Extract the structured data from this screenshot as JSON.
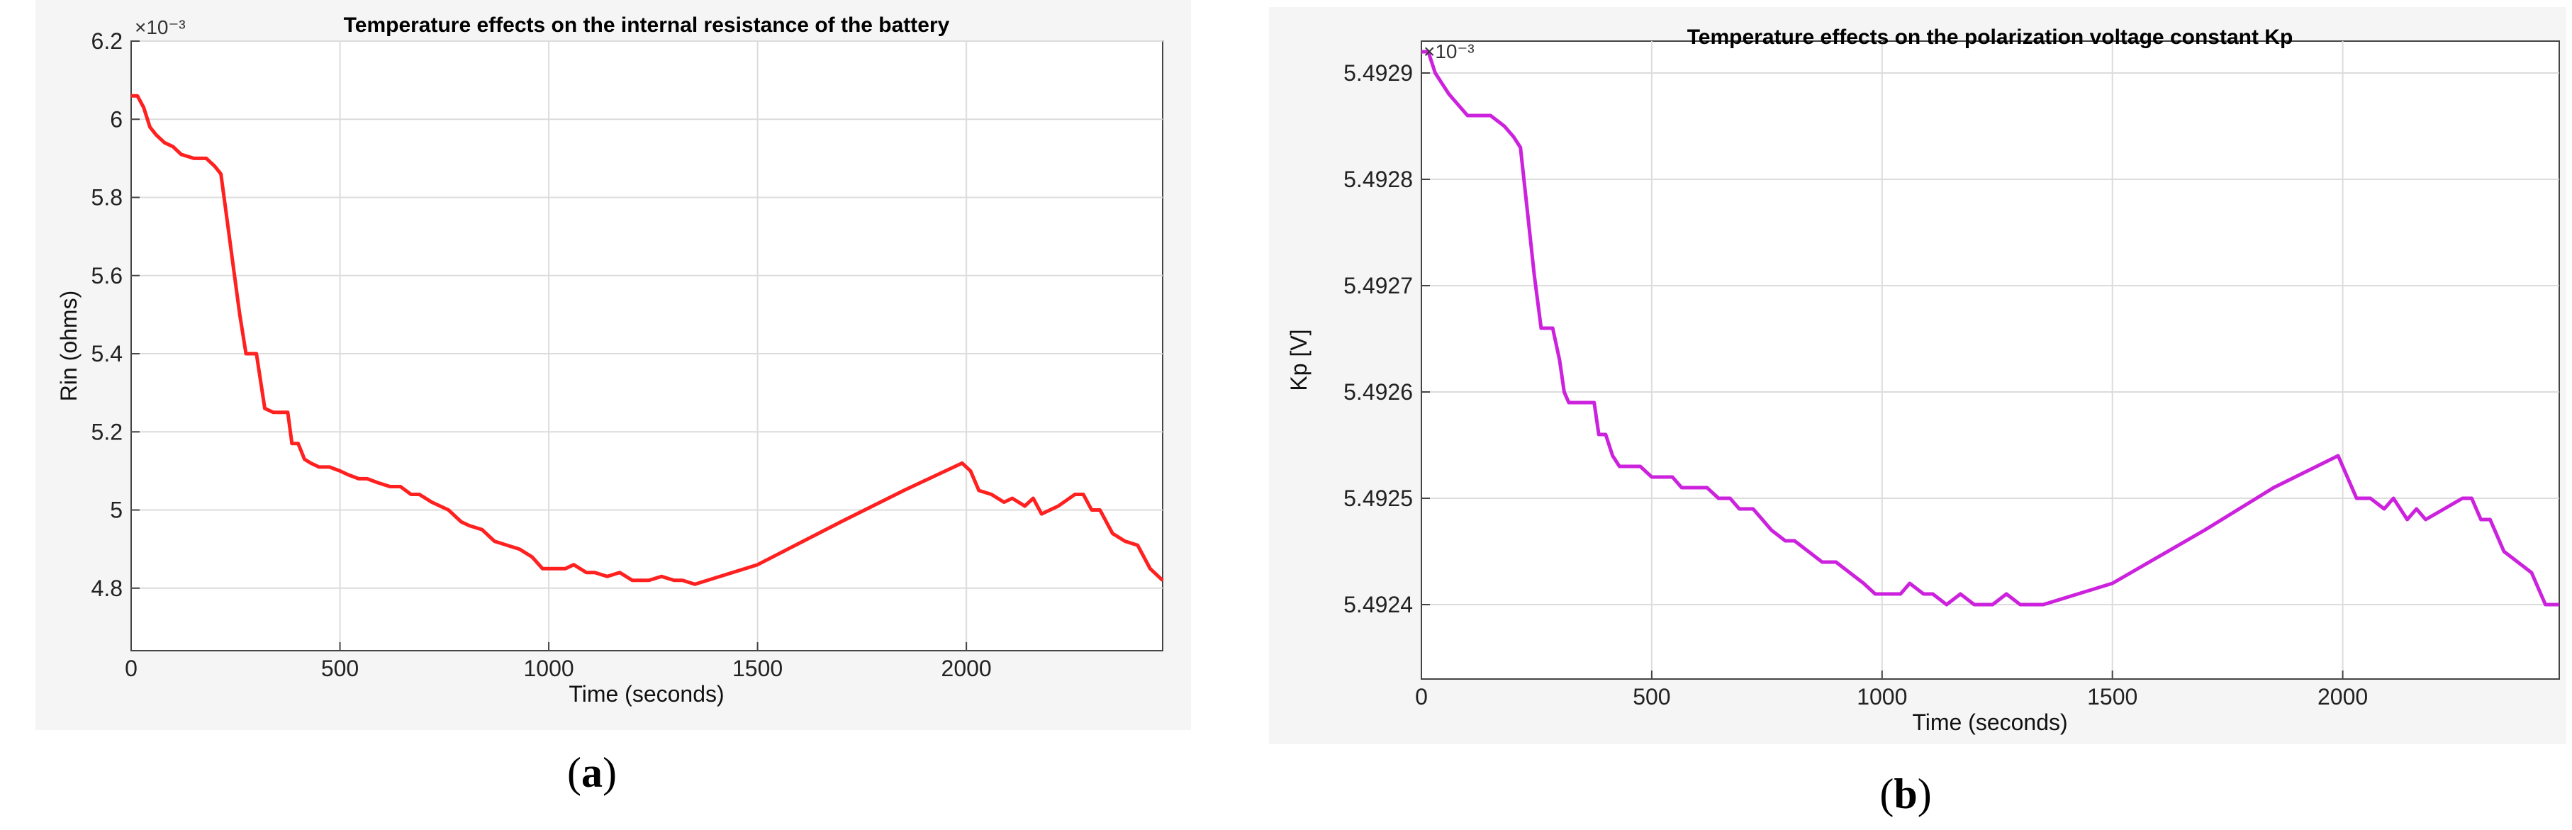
{
  "chart_data": [
    {
      "id": "a",
      "type": "line",
      "title": "Temperature effects on the internal resistance of the battery",
      "xlabel": "Time (seconds)",
      "ylabel": "Rin (ohms)",
      "y_exponent_label": "×10⁻³",
      "xlim": [
        0,
        2470
      ],
      "ylim": [
        4.64,
        6.2
      ],
      "xticks": [
        0,
        500,
        1000,
        1500,
        2000
      ],
      "xtick_labels": [
        "0",
        "500",
        "1000",
        "1500",
        "2000"
      ],
      "yticks": [
        4.8,
        5.0,
        5.2,
        5.4,
        5.6,
        5.8,
        6.0,
        6.2
      ],
      "ytick_labels": [
        "4.8",
        "5",
        "5.2",
        "5.4",
        "5.6",
        "5.8",
        "6",
        "6.2"
      ],
      "grid": true,
      "color": "#ff2020",
      "caption_letter": "a",
      "series": [
        {
          "name": "Rin",
          "x": [
            0,
            15,
            30,
            45,
            60,
            80,
            100,
            120,
            150,
            180,
            200,
            215,
            230,
            245,
            260,
            275,
            285,
            300,
            310,
            320,
            340,
            360,
            375,
            385,
            400,
            415,
            430,
            450,
            475,
            500,
            520,
            545,
            565,
            590,
            620,
            645,
            670,
            690,
            720,
            740,
            760,
            790,
            810,
            840,
            870,
            900,
            930,
            960,
            985,
            1000,
            1040,
            1060,
            1090,
            1110,
            1140,
            1170,
            1200,
            1240,
            1270,
            1300,
            1320,
            1350,
            1500,
            1700,
            1850,
            1990,
            2010,
            2030,
            2060,
            2090,
            2110,
            2140,
            2160,
            2180,
            2220,
            2260,
            2280,
            2300,
            2320,
            2350,
            2380,
            2410,
            2440,
            2470
          ],
          "y": [
            6.06,
            6.06,
            6.03,
            5.98,
            5.96,
            5.94,
            5.93,
            5.91,
            5.9,
            5.9,
            5.88,
            5.86,
            5.74,
            5.62,
            5.5,
            5.4,
            5.4,
            5.4,
            5.33,
            5.26,
            5.25,
            5.25,
            5.25,
            5.17,
            5.17,
            5.13,
            5.12,
            5.11,
            5.11,
            5.1,
            5.09,
            5.08,
            5.08,
            5.07,
            5.06,
            5.06,
            5.04,
            5.04,
            5.02,
            5.01,
            5.0,
            4.97,
            4.96,
            4.95,
            4.92,
            4.91,
            4.9,
            4.88,
            4.85,
            4.85,
            4.85,
            4.86,
            4.84,
            4.84,
            4.83,
            4.84,
            4.82,
            4.82,
            4.83,
            4.82,
            4.82,
            4.81,
            4.86,
            4.97,
            5.05,
            5.12,
            5.1,
            5.05,
            5.04,
            5.02,
            5.03,
            5.01,
            5.03,
            4.99,
            5.01,
            5.04,
            5.04,
            5.0,
            5.0,
            4.94,
            4.92,
            4.91,
            4.85,
            4.82
          ]
        }
      ]
    },
    {
      "id": "b",
      "type": "line",
      "title": "Temperature effects on the polarization voltage constant Kp",
      "xlabel": "Time (seconds)",
      "ylabel": "Kp [V]",
      "y_exponent_label": "×10⁻³",
      "xlim": [
        0,
        2470
      ],
      "ylim": [
        5.49233,
        5.49293
      ],
      "xticks": [
        0,
        500,
        1000,
        1500,
        2000
      ],
      "xtick_labels": [
        "0",
        "500",
        "1000",
        "1500",
        "2000"
      ],
      "yticks": [
        5.4924,
        5.4925,
        5.4926,
        5.4927,
        5.4928,
        5.4929
      ],
      "ytick_labels": [
        "5.4924",
        "5.4925",
        "5.4926",
        "5.4927",
        "5.4928",
        "5.4929"
      ],
      "grid": true,
      "color": "#cc22dd",
      "caption_letter": "b",
      "series": [
        {
          "name": "Kp",
          "x": [
            0,
            15,
            30,
            45,
            60,
            80,
            100,
            120,
            150,
            180,
            200,
            215,
            230,
            245,
            260,
            275,
            285,
            300,
            310,
            320,
            340,
            360,
            375,
            385,
            400,
            415,
            430,
            450,
            475,
            500,
            520,
            545,
            565,
            590,
            620,
            645,
            670,
            690,
            720,
            740,
            760,
            790,
            810,
            840,
            870,
            900,
            930,
            960,
            985,
            1000,
            1040,
            1060,
            1090,
            1110,
            1140,
            1170,
            1200,
            1240,
            1270,
            1300,
            1320,
            1350,
            1500,
            1700,
            1850,
            1990,
            2010,
            2030,
            2060,
            2090,
            2110,
            2140,
            2160,
            2180,
            2220,
            2260,
            2280,
            2300,
            2320,
            2350,
            2380,
            2410,
            2440,
            2470
          ],
          "y": [
            5.49292,
            5.49292,
            5.4929,
            5.49289,
            5.49288,
            5.49287,
            5.49286,
            5.49286,
            5.49286,
            5.49285,
            5.49284,
            5.49283,
            5.49277,
            5.49271,
            5.49266,
            5.49266,
            5.49266,
            5.49263,
            5.4926,
            5.49259,
            5.49259,
            5.49259,
            5.49259,
            5.49256,
            5.49256,
            5.49254,
            5.49253,
            5.49253,
            5.49253,
            5.49252,
            5.49252,
            5.49252,
            5.49251,
            5.49251,
            5.49251,
            5.4925,
            5.4925,
            5.49249,
            5.49249,
            5.49248,
            5.49247,
            5.49246,
            5.49246,
            5.49245,
            5.49244,
            5.49244,
            5.49243,
            5.49242,
            5.49241,
            5.49241,
            5.49241,
            5.49242,
            5.49241,
            5.49241,
            5.4924,
            5.49241,
            5.4924,
            5.4924,
            5.49241,
            5.4924,
            5.4924,
            5.4924,
            5.49242,
            5.49247,
            5.49251,
            5.49254,
            5.49252,
            5.4925,
            5.4925,
            5.49249,
            5.4925,
            5.49248,
            5.49249,
            5.49248,
            5.49249,
            5.4925,
            5.4925,
            5.49248,
            5.49248,
            5.49245,
            5.49244,
            5.49243,
            5.4924,
            5.4924
          ]
        }
      ]
    }
  ]
}
